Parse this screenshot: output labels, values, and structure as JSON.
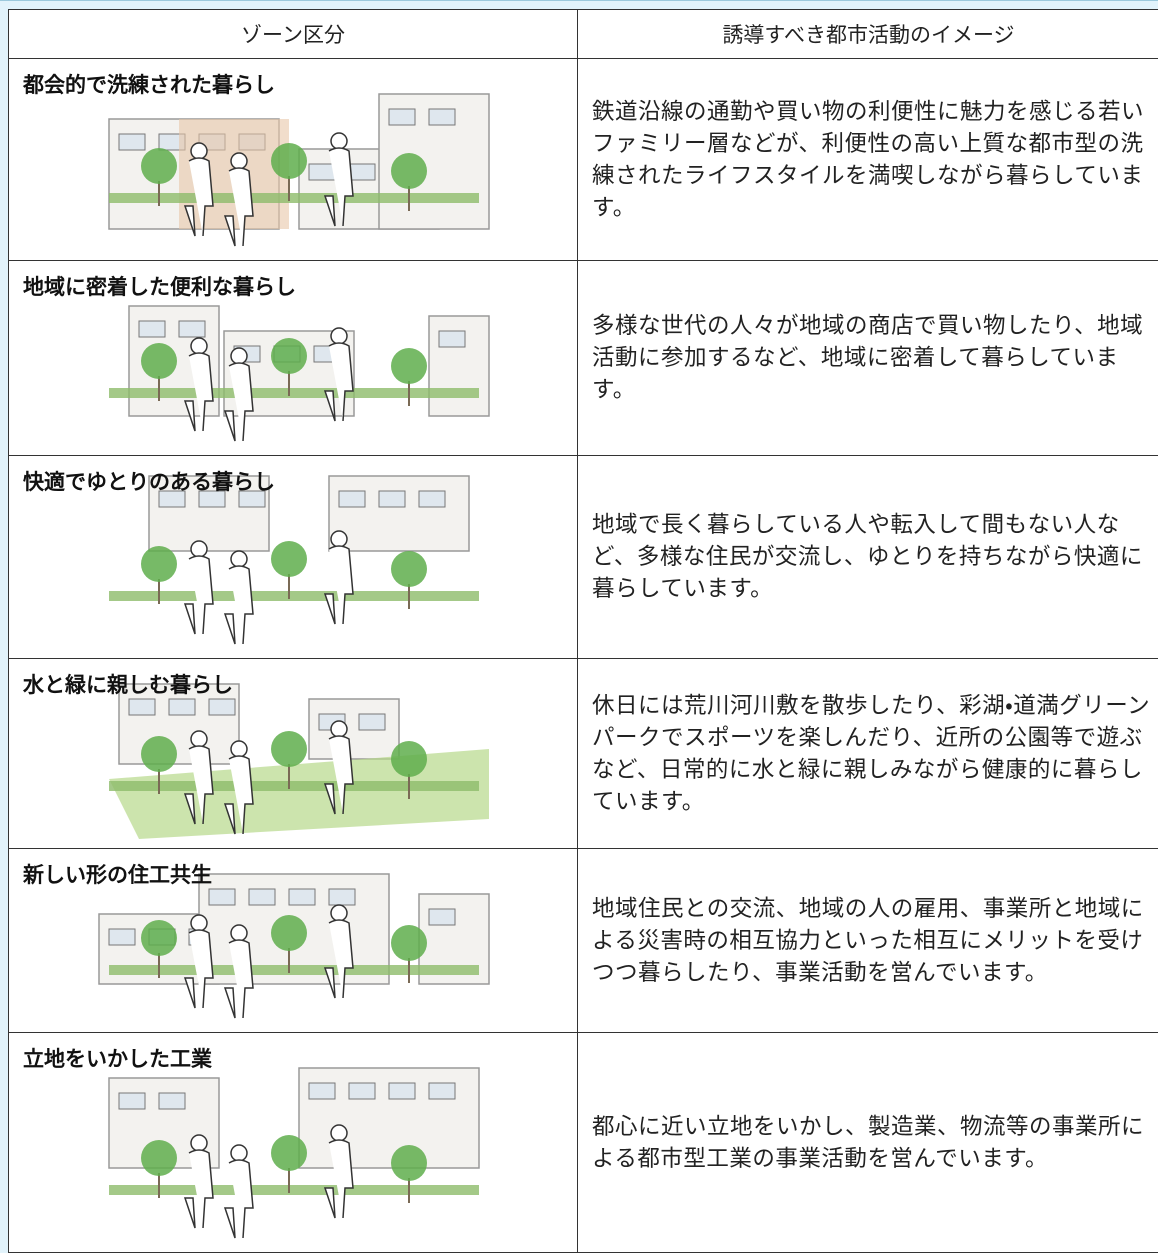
{
  "table": {
    "headers": [
      "ゾーン区分",
      "誘導すべき都市活動のイメージ"
    ],
    "rows": [
      [
        "都会的で洗練された暮らし",
        "鉄道沿線の通勤や買い物の利便性に魅力を感じる若いファミリー層などが、利便性の高い上質な都市型の洗練されたライフスタイルを満喫しながら暮らしています。"
      ],
      [
        "地域に密着した便利な暮らし",
        "多様な世代の人々が地域の商店で買い物したり、地域活動に参加するなど、地域に密着して暮らしています。"
      ],
      [
        "快適でゆとりのある暮らし",
        "地域で長く暮らしている人や転入して間もない人など、多様な住民が交流し、ゆとりを持ちながら快適に暮らしています。"
      ],
      [
        "水と緑に親しむ暮らし",
        "休日には荒川河川敷を散歩したり、彩湖・道満グリーンパークでスポーツを楽しんだり、近所の公園等で遊ぶなど、日常的に水と緑に親しみながら健康的に暮らしています。"
      ],
      [
        "新しい形の住工共生",
        "地域住民との交流、地域の人の雇用、事業所と地域による災害時の相互協力といった相互にメリットを受けつつ暮らしたり、事業活動を営んでいます。"
      ],
      [
        "立地をいかした工業",
        "都心に近い立地をいかし、製造業、物流等の事業所による都市型工業の事業活動を営んでいます。"
      ]
    ]
  }
}
